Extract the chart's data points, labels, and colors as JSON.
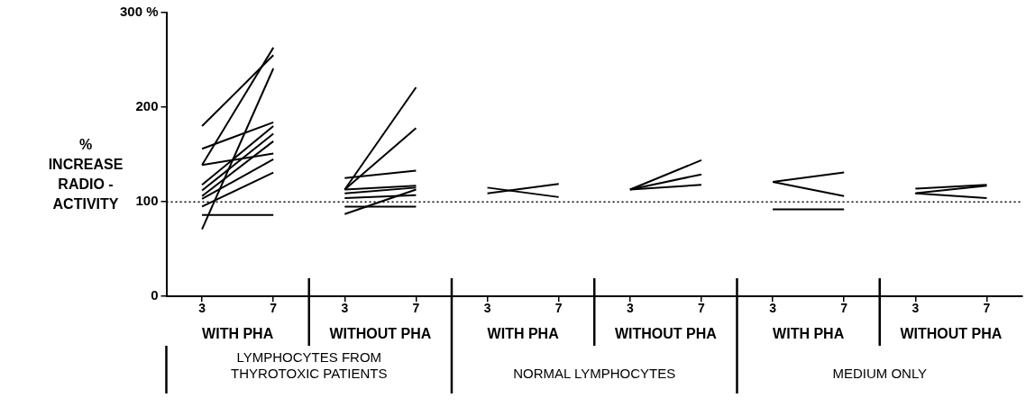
{
  "chart_data": {
    "type": "line",
    "ylabel": "%\nINCREASE\nRADIO -\nACTIVITY",
    "categories": [
      "3",
      "7",
      "3",
      "7",
      "3",
      "7",
      "3",
      "7",
      "3",
      "7",
      "3",
      "7"
    ],
    "ylim": [
      0,
      300
    ],
    "yticks": [
      0,
      100,
      200,
      {
        "value": 300,
        "label": "300 %"
      }
    ],
    "grid": false,
    "legend": false,
    "marker": "none",
    "line_style": "solid",
    "ref_lines": [
      {
        "axis": "y",
        "value": 100,
        "line_style": "dotted",
        "color": "#000000"
      }
    ],
    "annotations": [
      "WITH PHA",
      "WITHOUT PHA",
      "WITH PHA",
      "WITHOUT PHA",
      "WITH PHA",
      "WITHOUT PHA",
      "LYMPHOCYTES FROM\nTHYROTOXIC PATIENTS",
      "NORMAL LYMPHOCYTES",
      "MEDIUM ONLY"
    ],
    "series": [
      {
        "color": "#000000",
        "values": [
          180,
          255,
          null,
          null,
          null,
          null,
          null,
          null,
          null,
          null,
          null,
          null
        ]
      },
      {
        "color": "#000000",
        "values": [
          139,
          263,
          null,
          null,
          null,
          null,
          null,
          null,
          null,
          null,
          null,
          null
        ]
      },
      {
        "color": "#000000",
        "values": [
          71,
          241,
          null,
          null,
          null,
          null,
          null,
          null,
          null,
          null,
          null,
          null
        ]
      },
      {
        "color": "#000000",
        "values": [
          156,
          184,
          null,
          null,
          null,
          null,
          null,
          null,
          null,
          null,
          null,
          null
        ]
      },
      {
        "color": "#000000",
        "values": [
          139,
          151,
          null,
          null,
          null,
          null,
          null,
          null,
          null,
          null,
          null,
          null
        ]
      },
      {
        "color": "#000000",
        "values": [
          118,
          180,
          null,
          null,
          null,
          null,
          null,
          null,
          null,
          null,
          null,
          null
        ]
      },
      {
        "color": "#000000",
        "values": [
          112,
          172,
          null,
          null,
          null,
          null,
          null,
          null,
          null,
          null,
          null,
          null
        ]
      },
      {
        "color": "#000000",
        "values": [
          106,
          164,
          null,
          null,
          null,
          null,
          null,
          null,
          null,
          null,
          null,
          null
        ]
      },
      {
        "color": "#000000",
        "values": [
          103,
          145,
          null,
          null,
          null,
          null,
          null,
          null,
          null,
          null,
          null,
          null
        ]
      },
      {
        "color": "#000000",
        "values": [
          95,
          131,
          null,
          null,
          null,
          null,
          null,
          null,
          null,
          null,
          null,
          null
        ]
      },
      {
        "color": "#000000",
        "values": [
          86,
          86,
          null,
          null,
          null,
          null,
          null,
          null,
          null,
          null,
          null,
          null
        ]
      },
      {
        "color": "#000000",
        "values": [
          null,
          null,
          113,
          221,
          null,
          null,
          null,
          null,
          null,
          null,
          null,
          null
        ]
      },
      {
        "color": "#000000",
        "values": [
          null,
          null,
          113,
          178,
          null,
          null,
          null,
          null,
          null,
          null,
          null,
          null
        ]
      },
      {
        "color": "#000000",
        "values": [
          null,
          null,
          125,
          133,
          null,
          null,
          null,
          null,
          null,
          null,
          null,
          null
        ]
      },
      {
        "color": "#000000",
        "values": [
          null,
          null,
          113,
          117,
          null,
          null,
          null,
          null,
          null,
          null,
          null,
          null
        ]
      },
      {
        "color": "#000000",
        "values": [
          null,
          null,
          109,
          115,
          null,
          null,
          null,
          null,
          null,
          null,
          null,
          null
        ]
      },
      {
        "color": "#000000",
        "values": [
          null,
          null,
          104,
          107,
          null,
          null,
          null,
          null,
          null,
          null,
          null,
          null
        ]
      },
      {
        "color": "#000000",
        "values": [
          null,
          null,
          95,
          95,
          null,
          null,
          null,
          null,
          null,
          null,
          null,
          null
        ]
      },
      {
        "color": "#000000",
        "values": [
          null,
          null,
          87,
          113,
          null,
          null,
          null,
          null,
          null,
          null,
          null,
          null
        ]
      },
      {
        "color": "#000000",
        "values": [
          null,
          null,
          null,
          null,
          109,
          119,
          null,
          null,
          null,
          null,
          null,
          null
        ]
      },
      {
        "color": "#000000",
        "values": [
          null,
          null,
          null,
          null,
          115,
          105,
          null,
          null,
          null,
          null,
          null,
          null
        ]
      },
      {
        "color": "#000000",
        "values": [
          null,
          null,
          null,
          null,
          null,
          null,
          113,
          144,
          null,
          null,
          null,
          null
        ]
      },
      {
        "color": "#000000",
        "values": [
          null,
          null,
          null,
          null,
          null,
          null,
          113,
          129,
          null,
          null,
          null,
          null
        ]
      },
      {
        "color": "#000000",
        "values": [
          null,
          null,
          null,
          null,
          null,
          null,
          113,
          118,
          null,
          null,
          null,
          null
        ]
      },
      {
        "color": "#000000",
        "values": [
          null,
          null,
          null,
          null,
          null,
          null,
          null,
          null,
          121,
          131,
          null,
          null
        ]
      },
      {
        "color": "#000000",
        "values": [
          null,
          null,
          null,
          null,
          null,
          null,
          null,
          null,
          121,
          106,
          null,
          null
        ]
      },
      {
        "color": "#000000",
        "values": [
          null,
          null,
          null,
          null,
          null,
          null,
          null,
          null,
          92,
          92,
          null,
          null
        ]
      },
      {
        "color": "#000000",
        "values": [
          null,
          null,
          null,
          null,
          null,
          null,
          null,
          null,
          null,
          null,
          114,
          118
        ]
      },
      {
        "color": "#000000",
        "values": [
          null,
          null,
          null,
          null,
          null,
          null,
          null,
          null,
          null,
          null,
          109,
          117
        ]
      },
      {
        "color": "#000000",
        "values": [
          null,
          null,
          null,
          null,
          null,
          null,
          null,
          null,
          null,
          null,
          109,
          104
        ]
      }
    ]
  }
}
